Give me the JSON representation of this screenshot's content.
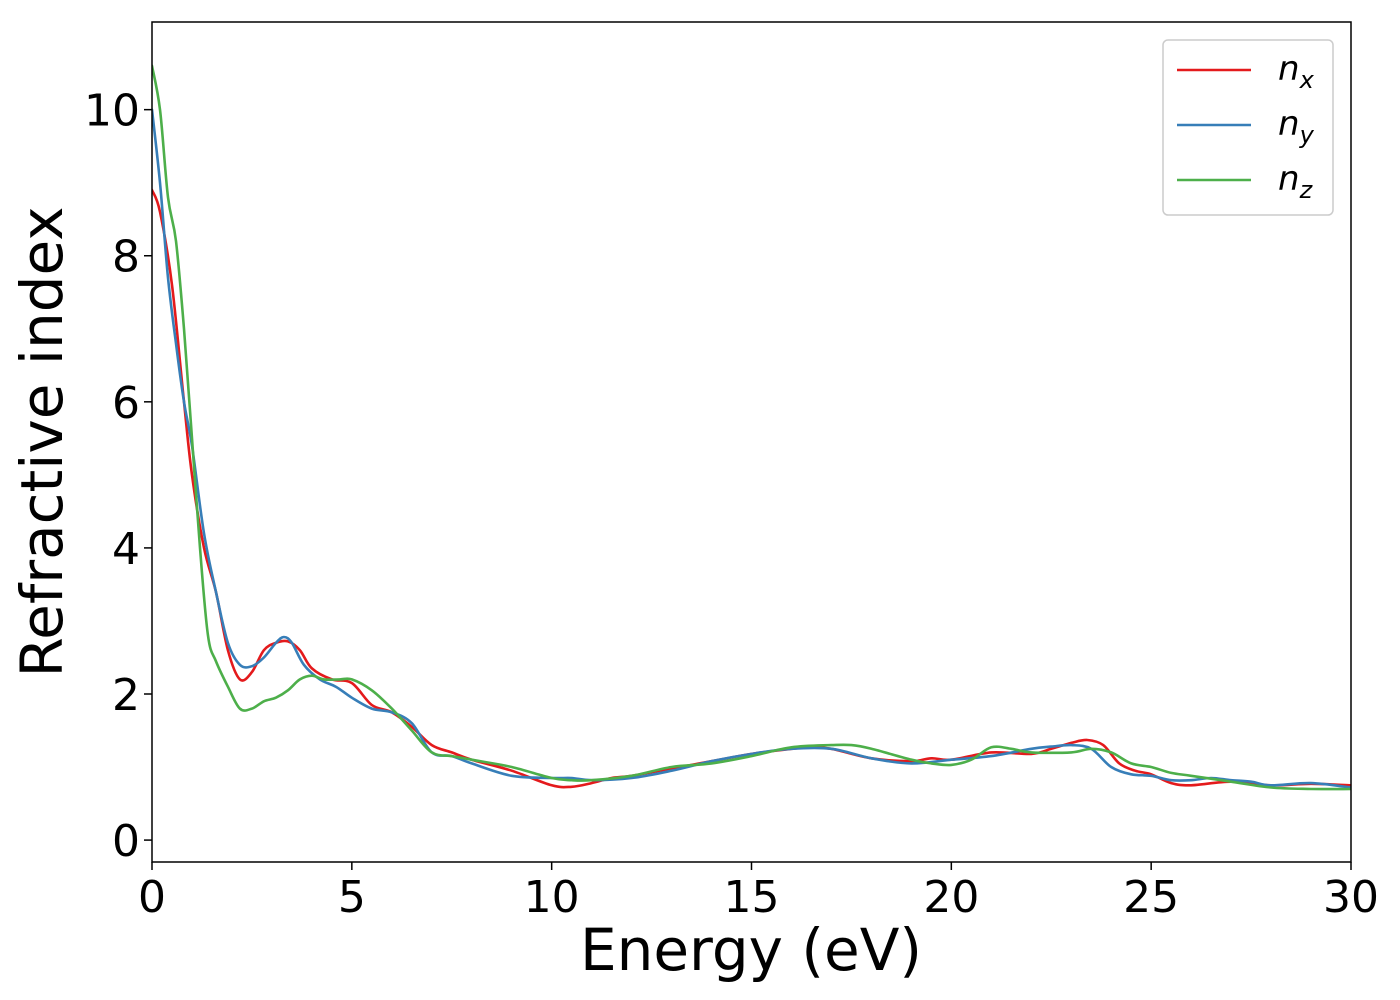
{
  "chart_data": {
    "type": "line",
    "xlabel": "Energy (eV)",
    "ylabel": "Refractive index",
    "xlim": [
      0,
      30
    ],
    "ylim": [
      -0.3,
      11.2
    ],
    "xticks": [
      0,
      5,
      10,
      15,
      20,
      25,
      30
    ],
    "yticks": [
      0,
      2,
      4,
      6,
      8,
      10
    ],
    "grid": false,
    "legend_position": "top-right",
    "series": [
      {
        "name": "n_x",
        "label_base": "n",
        "label_sub": "x",
        "color": "#e41a1c",
        "x": [
          0,
          0.2,
          0.5,
          0.8,
          1.0,
          1.3,
          1.6,
          1.9,
          2.2,
          2.5,
          2.8,
          3.1,
          3.4,
          3.7,
          4.0,
          4.5,
          5.0,
          5.5,
          6.0,
          6.5,
          7.0,
          7.5,
          8.0,
          9.0,
          10.0,
          10.5,
          11.0,
          11.5,
          12.0,
          13.0,
          14.0,
          15.0,
          16.0,
          16.5,
          17.0,
          18.0,
          19.0,
          19.5,
          20.0,
          21.0,
          22.0,
          22.5,
          23.0,
          23.4,
          23.8,
          24.2,
          24.6,
          25.0,
          25.5,
          26.0,
          27.0,
          28.0,
          29.0,
          30.0
        ],
        "y": [
          8.9,
          8.6,
          7.6,
          6.0,
          5.0,
          4.0,
          3.4,
          2.6,
          2.2,
          2.3,
          2.6,
          2.7,
          2.72,
          2.6,
          2.35,
          2.2,
          2.15,
          1.85,
          1.75,
          1.55,
          1.3,
          1.2,
          1.1,
          0.95,
          0.75,
          0.73,
          0.78,
          0.85,
          0.88,
          0.98,
          1.08,
          1.18,
          1.25,
          1.27,
          1.25,
          1.12,
          1.08,
          1.12,
          1.1,
          1.2,
          1.18,
          1.25,
          1.33,
          1.37,
          1.3,
          1.05,
          0.95,
          0.9,
          0.78,
          0.75,
          0.8,
          0.75,
          0.77,
          0.75
        ]
      },
      {
        "name": "n_y",
        "label_base": "n",
        "label_sub": "y",
        "color": "#377eb8",
        "x": [
          0,
          0.2,
          0.4,
          0.6,
          0.8,
          1.0,
          1.3,
          1.6,
          1.9,
          2.2,
          2.5,
          2.8,
          3.1,
          3.3,
          3.5,
          3.8,
          4.2,
          4.6,
          5.0,
          5.5,
          6.0,
          6.5,
          7.0,
          7.5,
          8.0,
          9.0,
          10.0,
          10.5,
          11.0,
          12.0,
          13.0,
          14.0,
          15.0,
          16.0,
          17.0,
          18.0,
          19.0,
          20.0,
          21.0,
          22.0,
          22.5,
          23.0,
          23.5,
          24.0,
          24.5,
          25.0,
          25.5,
          26.0,
          26.5,
          27.0,
          27.5,
          28.0,
          29.0,
          30.0
        ],
        "y": [
          10.0,
          9.0,
          7.7,
          6.8,
          6.0,
          5.4,
          4.2,
          3.4,
          2.7,
          2.4,
          2.38,
          2.5,
          2.7,
          2.78,
          2.7,
          2.4,
          2.2,
          2.1,
          1.95,
          1.8,
          1.75,
          1.6,
          1.2,
          1.15,
          1.05,
          0.88,
          0.85,
          0.85,
          0.82,
          0.85,
          0.95,
          1.08,
          1.18,
          1.25,
          1.25,
          1.12,
          1.05,
          1.1,
          1.15,
          1.25,
          1.28,
          1.3,
          1.25,
          1.0,
          0.9,
          0.88,
          0.82,
          0.82,
          0.85,
          0.82,
          0.8,
          0.75,
          0.78,
          0.72
        ]
      },
      {
        "name": "n_z",
        "label_base": "n",
        "label_sub": "z",
        "color": "#4daf4a",
        "x": [
          0,
          0.2,
          0.4,
          0.6,
          0.8,
          1.0,
          1.2,
          1.4,
          1.6,
          1.9,
          2.2,
          2.5,
          2.8,
          3.1,
          3.4,
          3.7,
          4.0,
          4.3,
          4.7,
          5.0,
          5.5,
          6.0,
          6.5,
          7.0,
          7.5,
          8.0,
          9.0,
          10.0,
          10.5,
          11.0,
          12.0,
          13.0,
          14.0,
          15.0,
          16.0,
          17.0,
          17.5,
          18.0,
          19.0,
          19.5,
          20.0,
          20.5,
          21.0,
          21.5,
          22.0,
          23.0,
          23.5,
          24.0,
          24.5,
          25.0,
          25.5,
          26.0,
          27.0,
          28.0,
          29.0,
          30.0
        ],
        "y": [
          10.6,
          10.0,
          8.8,
          8.2,
          7.0,
          5.5,
          4.0,
          2.8,
          2.45,
          2.1,
          1.8,
          1.8,
          1.9,
          1.95,
          2.05,
          2.2,
          2.25,
          2.2,
          2.2,
          2.2,
          2.05,
          1.8,
          1.5,
          1.2,
          1.15,
          1.1,
          1.0,
          0.85,
          0.82,
          0.82,
          0.88,
          1.0,
          1.05,
          1.15,
          1.27,
          1.3,
          1.3,
          1.25,
          1.1,
          1.05,
          1.03,
          1.1,
          1.27,
          1.25,
          1.2,
          1.2,
          1.25,
          1.2,
          1.05,
          1.0,
          0.92,
          0.88,
          0.8,
          0.72,
          0.7,
          0.7
        ]
      }
    ]
  }
}
